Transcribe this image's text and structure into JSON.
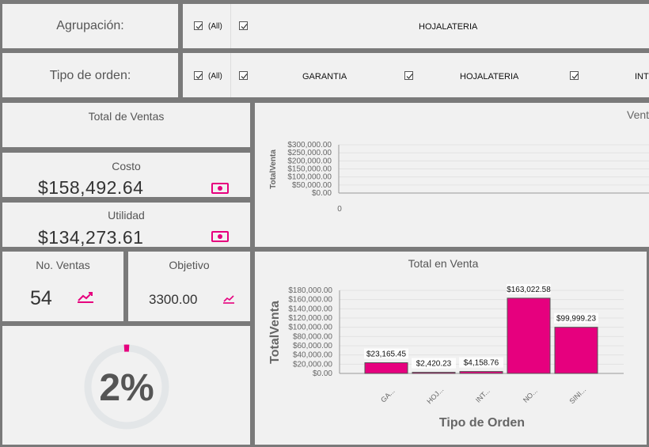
{
  "filters": {
    "agrupacion": {
      "label": "Agrupación:",
      "all_label": "(All)",
      "options": [
        "HOJALATERIA"
      ]
    },
    "tipo_orden": {
      "label": "Tipo de orden:",
      "all_label": "(All)",
      "options": [
        "GARANTIA",
        "HOJALATERIA",
        "INT"
      ]
    }
  },
  "kpis": {
    "total_ventas": {
      "title": "Total de Ventas"
    },
    "costo": {
      "title": "Costo",
      "value": "$158,492.64"
    },
    "utilidad": {
      "title": "Utilidad",
      "value": "$134,273.61"
    },
    "no_ventas": {
      "title": "No. Ventas",
      "value": "54"
    },
    "objetivo": {
      "title": "Objetivo",
      "value": "3300.00"
    },
    "gauge": {
      "value": "2%",
      "fraction": 0.02
    }
  },
  "colors": {
    "accent": "#e6007e",
    "panel": "#f1f1f1",
    "frame": "#7a7a7a"
  },
  "icons": {
    "money": "money-icon",
    "trend": "trending-up-icon",
    "check": "check-icon"
  },
  "chart_data": [
    {
      "type": "line",
      "title": "Vent",
      "ylabel": "TotalVenta",
      "x_tick": "0",
      "yticks": [
        "$300,000.00",
        "$250,000.00",
        "$200,000.00",
        "$150,000.00",
        "$100,000.00",
        "$50,000.00",
        "$0.00"
      ],
      "ylim": [
        0,
        300000
      ]
    },
    {
      "type": "bar",
      "title": "Total en Venta",
      "xlabel": "Tipo de Orden",
      "ylabel": "TotalVenta",
      "categories": [
        "GA...",
        "HOJ...",
        "INT...",
        "NO...",
        "SINI..."
      ],
      "values": [
        23165.45,
        2420.23,
        4158.76,
        163022.58,
        99999.23
      ],
      "data_labels": [
        "$23,165.45",
        "$2,420.23",
        "$4,158.76",
        "$163,022.58",
        "$99,999.23"
      ],
      "yticks": [
        "$180,000.00",
        "$160,000.00",
        "$140,000.00",
        "$120,000.00",
        "$100,000.00",
        "$80,000.00",
        "$60,000.00",
        "$40,000.00",
        "$20,000.00",
        "$0.00"
      ],
      "ylim": [
        0,
        180000
      ],
      "grid": true
    }
  ]
}
